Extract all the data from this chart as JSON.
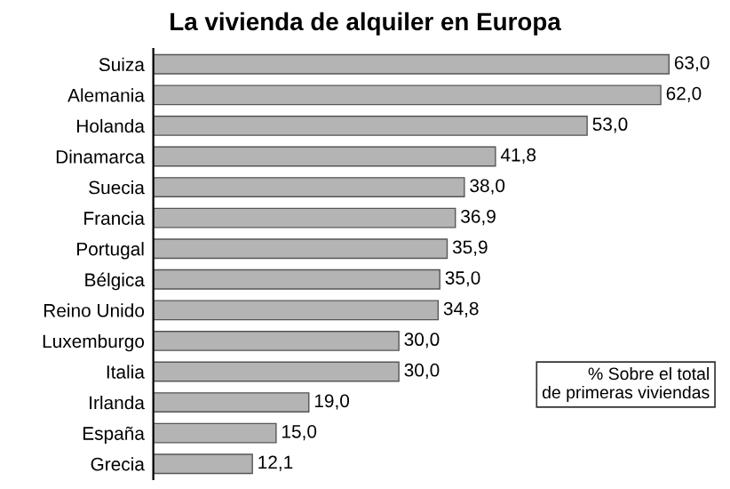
{
  "chart_data": {
    "type": "bar",
    "orientation": "horizontal",
    "title": "La vivienda de alquiler en Europa",
    "categories": [
      "Suiza",
      "Alemania",
      "Holanda",
      "Dinamarca",
      "Suecia",
      "Francia",
      "Portugal",
      "Bélgica",
      "Reino Unido",
      "Luxemburgo",
      "Italia",
      "Irlanda",
      "España",
      "Grecia"
    ],
    "values": [
      63.0,
      62.0,
      53.0,
      41.8,
      38.0,
      36.9,
      35.9,
      35.0,
      34.8,
      30.0,
      30.0,
      19.0,
      15.0,
      12.1
    ],
    "value_labels": [
      "63,0",
      "62,0",
      "53,0",
      "41,8",
      "38,0",
      "36,9",
      "35,9",
      "35,0",
      "34,8",
      "30,0",
      "30,0",
      "19,0",
      "15,0",
      "12,1"
    ],
    "color": "#b4b4b4",
    "annotations": [
      {
        "text": "% Sobre el total\nde primeras viviendas"
      }
    ]
  }
}
